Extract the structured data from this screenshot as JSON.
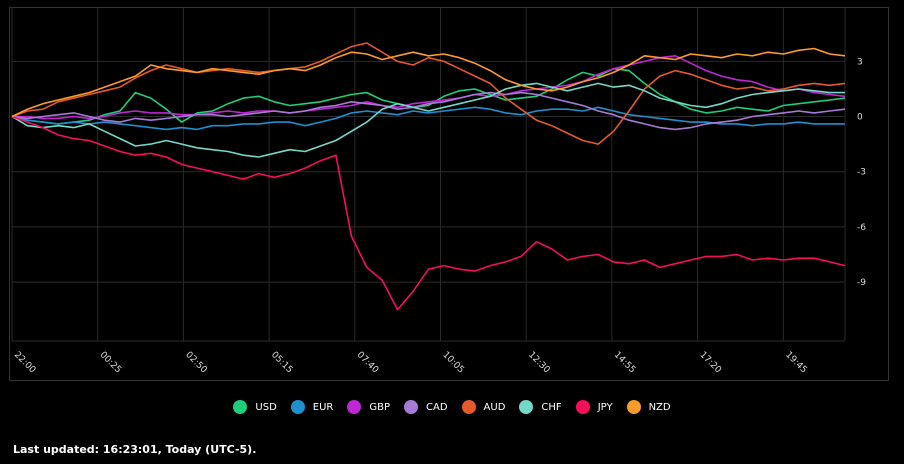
{
  "chart_data": {
    "type": "line",
    "xlabel": "",
    "ylabel": "",
    "x_ticks": [
      "22:00",
      "00:25",
      "02:50",
      "05:15",
      "07:40",
      "10:05",
      "12:30",
      "14:55",
      "17:20",
      "19:45"
    ],
    "y_ticks": [
      3,
      0,
      -3,
      -6,
      -9
    ],
    "ylim": [
      -12.2,
      5.9
    ],
    "grid": true,
    "legend_position": "bottom",
    "series": [
      {
        "name": "USD",
        "color": "#1fce7a",
        "values": [
          0,
          -0.2,
          -0.3,
          -0.4,
          -0.3,
          -0.2,
          0.1,
          0.3,
          1.3,
          1.0,
          0.4,
          -0.3,
          0.2,
          0.3,
          0.7,
          1.0,
          1.1,
          0.8,
          0.6,
          0.7,
          0.8,
          1.0,
          1.2,
          1.3,
          0.9,
          0.7,
          0.5,
          0.6,
          1.1,
          1.4,
          1.5,
          1.2,
          0.9,
          1.0,
          1.1,
          1.5,
          2.0,
          2.4,
          2.2,
          2.6,
          2.5,
          1.8,
          1.2,
          0.8,
          0.4,
          0.2,
          0.3,
          0.5,
          0.4,
          0.3,
          0.6,
          0.7,
          0.8,
          0.9,
          1.0
        ]
      },
      {
        "name": "EUR",
        "color": "#1e90cf",
        "values": [
          0,
          -0.2,
          -0.3,
          -0.4,
          -0.3,
          -0.4,
          -0.3,
          -0.4,
          -0.5,
          -0.6,
          -0.7,
          -0.6,
          -0.7,
          -0.5,
          -0.5,
          -0.4,
          -0.4,
          -0.3,
          -0.3,
          -0.5,
          -0.3,
          -0.1,
          0.2,
          0.3,
          0.2,
          0.1,
          0.3,
          0.2,
          0.3,
          0.4,
          0.5,
          0.4,
          0.2,
          0.1,
          0.3,
          0.4,
          0.4,
          0.3,
          0.5,
          0.3,
          0.1,
          0.0,
          -0.1,
          -0.2,
          -0.3,
          -0.3,
          -0.4,
          -0.4,
          -0.5,
          -0.4,
          -0.4,
          -0.3,
          -0.4,
          -0.4,
          -0.4
        ]
      },
      {
        "name": "GBP",
        "color": "#c026d3",
        "values": [
          0,
          0.0,
          -0.1,
          -0.1,
          0.0,
          -0.1,
          0.0,
          0.2,
          0.3,
          0.2,
          0.2,
          0.1,
          0.1,
          0.2,
          0.3,
          0.2,
          0.3,
          0.3,
          0.2,
          0.3,
          0.4,
          0.5,
          0.6,
          0.8,
          0.6,
          0.5,
          0.7,
          0.8,
          0.9,
          1.0,
          1.2,
          1.1,
          1.2,
          1.4,
          1.5,
          1.6,
          1.7,
          1.9,
          2.3,
          2.6,
          2.8,
          3.0,
          3.2,
          3.3,
          2.9,
          2.5,
          2.2,
          2.0,
          1.9,
          1.6,
          1.4,
          1.5,
          1.3,
          1.2,
          1.1
        ]
      },
      {
        "name": "CAD",
        "color": "#a77ad6",
        "values": [
          0,
          -0.1,
          0.0,
          0.1,
          0.2,
          0.0,
          -0.2,
          -0.3,
          -0.1,
          -0.2,
          -0.1,
          0.0,
          0.1,
          0.1,
          0.0,
          0.1,
          0.2,
          0.3,
          0.2,
          0.3,
          0.5,
          0.6,
          0.8,
          0.7,
          0.6,
          0.4,
          0.5,
          0.7,
          0.8,
          1.0,
          1.2,
          1.3,
          1.2,
          1.3,
          1.2,
          1.0,
          0.8,
          0.6,
          0.3,
          0.1,
          -0.2,
          -0.4,
          -0.6,
          -0.7,
          -0.6,
          -0.4,
          -0.3,
          -0.2,
          0.0,
          0.1,
          0.2,
          0.3,
          0.2,
          0.3,
          0.4
        ]
      },
      {
        "name": "AUD",
        "color": "#e55a2b",
        "values": [
          0,
          0.3,
          0.4,
          0.8,
          1.0,
          1.2,
          1.4,
          1.6,
          2.1,
          2.5,
          2.8,
          2.6,
          2.4,
          2.5,
          2.6,
          2.5,
          2.4,
          2.5,
          2.6,
          2.7,
          3.0,
          3.4,
          3.8,
          4.0,
          3.5,
          3.0,
          2.8,
          3.2,
          3.0,
          2.6,
          2.2,
          1.8,
          1.0,
          0.4,
          -0.2,
          -0.5,
          -0.9,
          -1.3,
          -1.5,
          -0.8,
          0.3,
          1.5,
          2.2,
          2.5,
          2.3,
          2.0,
          1.7,
          1.5,
          1.6,
          1.4,
          1.5,
          1.7,
          1.8,
          1.7,
          1.8
        ]
      },
      {
        "name": "CHF",
        "color": "#73d9c6",
        "values": [
          0,
          -0.5,
          -0.6,
          -0.5,
          -0.6,
          -0.4,
          -0.8,
          -1.2,
          -1.6,
          -1.5,
          -1.3,
          -1.5,
          -1.7,
          -1.8,
          -1.9,
          -2.1,
          -2.2,
          -2.0,
          -1.8,
          -1.9,
          -1.6,
          -1.3,
          -0.8,
          -0.3,
          0.4,
          0.7,
          0.5,
          0.3,
          0.5,
          0.7,
          0.9,
          1.1,
          1.5,
          1.7,
          1.8,
          1.6,
          1.4,
          1.6,
          1.8,
          1.6,
          1.7,
          1.4,
          1.0,
          0.8,
          0.6,
          0.5,
          0.7,
          1.0,
          1.2,
          1.3,
          1.4,
          1.5,
          1.4,
          1.3,
          1.3
        ]
      },
      {
        "name": "JPY",
        "color": "#f50f5a",
        "values": [
          0,
          -0.3,
          -0.6,
          -1.0,
          -1.2,
          -1.3,
          -1.6,
          -1.9,
          -2.1,
          -2.0,
          -2.2,
          -2.6,
          -2.8,
          -3.0,
          -3.2,
          -3.4,
          -3.1,
          -3.3,
          -3.1,
          -2.8,
          -2.4,
          -2.1,
          -6.5,
          -8.2,
          -8.9,
          -10.5,
          -9.5,
          -8.3,
          -8.1,
          -8.3,
          -8.4,
          -8.1,
          -7.9,
          -7.6,
          -6.8,
          -7.2,
          -7.8,
          -7.6,
          -7.5,
          -7.9,
          -8.0,
          -7.8,
          -8.2,
          -8.0,
          -7.8,
          -7.6,
          -7.6,
          -7.5,
          -7.8,
          -7.7,
          -7.8,
          -7.7,
          -7.7,
          -7.9,
          -8.1
        ]
      },
      {
        "name": "NZD",
        "color": "#fb9b2c",
        "values": [
          0,
          0.4,
          0.7,
          0.9,
          1.1,
          1.3,
          1.6,
          1.9,
          2.2,
          2.8,
          2.6,
          2.5,
          2.4,
          2.6,
          2.5,
          2.4,
          2.3,
          2.5,
          2.6,
          2.5,
          2.8,
          3.2,
          3.5,
          3.4,
          3.1,
          3.3,
          3.5,
          3.3,
          3.4,
          3.2,
          2.9,
          2.5,
          2.0,
          1.7,
          1.5,
          1.4,
          1.6,
          1.9,
          2.1,
          2.4,
          2.8,
          3.3,
          3.2,
          3.1,
          3.4,
          3.3,
          3.2,
          3.4,
          3.3,
          3.5,
          3.4,
          3.6,
          3.7,
          3.4,
          3.3
        ]
      }
    ]
  },
  "legend": [
    {
      "label": "USD",
      "color": "#1fce7a"
    },
    {
      "label": "EUR",
      "color": "#1e90cf"
    },
    {
      "label": "GBP",
      "color": "#c026d3"
    },
    {
      "label": "CAD",
      "color": "#a77ad6"
    },
    {
      "label": "AUD",
      "color": "#e55a2b"
    },
    {
      "label": "CHF",
      "color": "#73d9c6"
    },
    {
      "label": "JPY",
      "color": "#f50f5a"
    },
    {
      "label": "NZD",
      "color": "#fb9b2c"
    }
  ],
  "footer": {
    "updated_text": "Last updated: 16:23:01, Today (UTC-5)."
  }
}
